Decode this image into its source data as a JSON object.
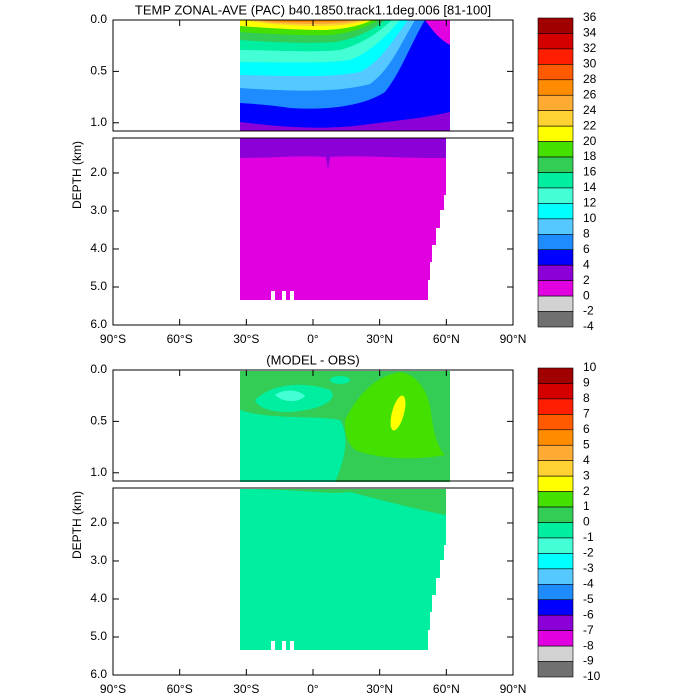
{
  "chart_data": [
    {
      "type": "contour",
      "title": "TEMP ZONAL-AVE (PAC) b40.1850.track1.1deg.006 [81-100]",
      "ylabel": "DEPTH (km)",
      "xlim": [
        -90,
        90
      ],
      "xticks": [
        {
          "value": -90,
          "label": "90°S"
        },
        {
          "value": -60,
          "label": "60°S"
        },
        {
          "value": -30,
          "label": "30°S"
        },
        {
          "value": 0,
          "label": "0°"
        },
        {
          "value": 30,
          "label": "30°N"
        },
        {
          "value": 60,
          "label": "60°N"
        },
        {
          "value": 90,
          "label": "90°N"
        }
      ],
      "ylim_upper": [
        0,
        1.08
      ],
      "ylim_lower": [
        1.08,
        6
      ],
      "yticks": [
        {
          "value": 0,
          "label": "0.0"
        },
        {
          "value": 0.5,
          "label": "0.5"
        },
        {
          "value": 1,
          "label": "1.0"
        },
        {
          "value": 2,
          "label": "2.0"
        },
        {
          "value": 3,
          "label": "3.0"
        },
        {
          "value": 4,
          "label": "4.0"
        },
        {
          "value": 5,
          "label": "5.0"
        },
        {
          "value": 6,
          "label": "6.0"
        }
      ],
      "colorbar": {
        "levels": [
          36,
          34,
          32,
          30,
          28,
          26,
          24,
          22,
          20,
          18,
          16,
          14,
          12,
          10,
          8,
          6,
          4,
          2,
          0,
          -2,
          -4
        ],
        "colors": [
          "#a00000",
          "#d40000",
          "#ff1e00",
          "#ff5a00",
          "#ff8c00",
          "#ffaa33",
          "#ffd233",
          "#ffff00",
          "#44e000",
          "#33cc55",
          "#00eea0",
          "#44ffd6",
          "#00ffff",
          "#55c8ff",
          "#1e8cff",
          "#0000ff",
          "#8c00d8",
          "#e000e0",
          "#d2d2d2",
          "#707070"
        ]
      }
    },
    {
      "type": "contour",
      "title": "(MODEL - OBS)",
      "ylabel": "DEPTH (km)",
      "xlim": [
        -90,
        90
      ],
      "xticks": [
        {
          "value": -90,
          "label": "90°S"
        },
        {
          "value": -60,
          "label": "60°S"
        },
        {
          "value": -30,
          "label": "30°S"
        },
        {
          "value": 0,
          "label": "0°"
        },
        {
          "value": 30,
          "label": "30°N"
        },
        {
          "value": 60,
          "label": "60°N"
        },
        {
          "value": 90,
          "label": "90°N"
        }
      ],
      "ylim_upper": [
        0,
        1.08
      ],
      "ylim_lower": [
        1.08,
        6
      ],
      "yticks": [
        {
          "value": 0,
          "label": "0.0"
        },
        {
          "value": 0.5,
          "label": "0.5"
        },
        {
          "value": 1,
          "label": "1.0"
        },
        {
          "value": 2,
          "label": "2.0"
        },
        {
          "value": 3,
          "label": "3.0"
        },
        {
          "value": 4,
          "label": "4.0"
        },
        {
          "value": 5,
          "label": "5.0"
        },
        {
          "value": 6,
          "label": "6.0"
        }
      ],
      "colorbar": {
        "levels": [
          10,
          9,
          8,
          7,
          6,
          5,
          4,
          3,
          2,
          1,
          0,
          -1,
          -2,
          -3,
          -4,
          -5,
          -6,
          -7,
          -8,
          -9,
          -10
        ],
        "colors": [
          "#a00000",
          "#d40000",
          "#ff1e00",
          "#ff5a00",
          "#ff8c00",
          "#ffaa33",
          "#ffd233",
          "#ffff00",
          "#44e000",
          "#33cc55",
          "#00eea0",
          "#44ffd6",
          "#00ffff",
          "#55c8ff",
          "#1e8cff",
          "#0000ff",
          "#8c00d8",
          "#e000e0",
          "#d2d2d2",
          "#707070"
        ]
      }
    }
  ]
}
